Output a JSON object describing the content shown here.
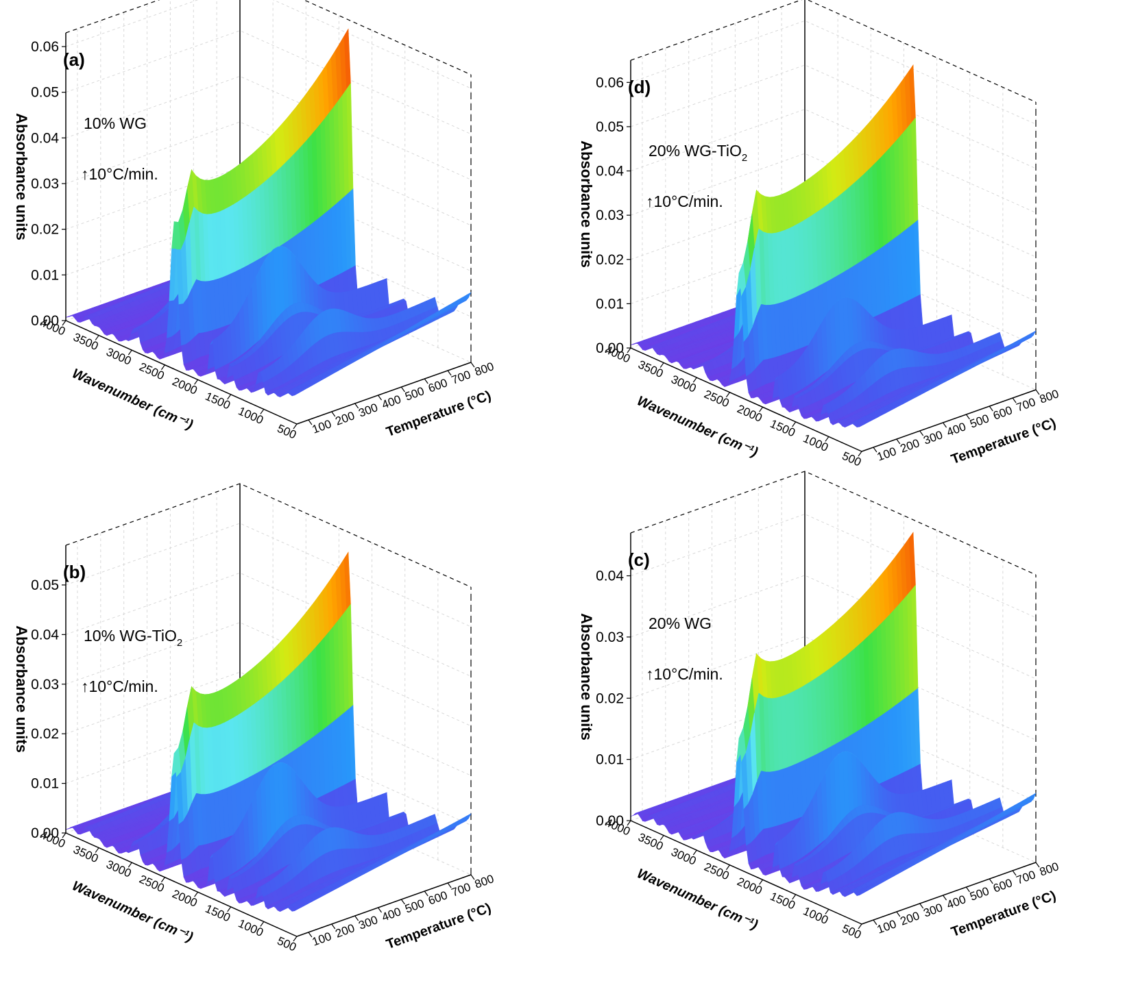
{
  "figure": {
    "panels": [
      {
        "label": "(a)",
        "sample": "10% WG",
        "subscript": "",
        "rate": "↑10°C/min."
      },
      {
        "label": "(d)",
        "sample": "20% WG-TiO",
        "subscript": "2",
        "rate": "↑10°C/min."
      },
      {
        "label": "(b)",
        "sample": "10% WG-TiO",
        "subscript": "2",
        "rate": "↑10°C/min."
      },
      {
        "label": "(c)",
        "sample": "20% WG",
        "subscript": "",
        "rate": "↑10°C/min."
      }
    ]
  },
  "chart_data": [
    {
      "type": "surface3d",
      "panel": "(a)",
      "zlabel": "Absorbance units",
      "xlabel": "Wavenumber (cm⁻¹)",
      "ylabel": "Temperature (°C)",
      "z_ticks": [
        "0.00",
        "0.01",
        "0.02",
        "0.03",
        "0.04",
        "0.05",
        "0.06"
      ],
      "x_ticks": [
        "4000",
        "3500",
        "3000",
        "2500",
        "2000",
        "1500",
        "1000",
        "500"
      ],
      "y_ticks": [
        "100",
        "200",
        "300",
        "400",
        "500",
        "600",
        "700",
        "800"
      ],
      "xlim": [
        4000,
        500
      ],
      "ylim": [
        50,
        800
      ],
      "zlim": [
        0,
        0.063
      ],
      "peaks": [
        {
          "wavenumber": 3650,
          "z": 0.004
        },
        {
          "wavenumber": 2990,
          "z": 0.019
        },
        {
          "wavenumber": 2920,
          "z": 0.019
        },
        {
          "wavenumber": 2360,
          "z": 0.062
        },
        {
          "wavenumber": 1790,
          "z": 0.027
        },
        {
          "wavenumber": 1510,
          "z": 0.013
        },
        {
          "wavenumber": 1060,
          "z": 0.012
        }
      ],
      "co2_band_at_800C": 0.06,
      "co2_band_valley": 0.036,
      "baseline_rise_500": 0.014
    },
    {
      "type": "surface3d",
      "panel": "(d)",
      "zlabel": "Absorbance units",
      "xlabel": "Wavenumber (cm⁻¹)",
      "ylabel": "Temperature (°C)",
      "z_ticks": [
        "0.00",
        "0.01",
        "0.02",
        "0.03",
        "0.04",
        "0.05",
        "0.06"
      ],
      "x_ticks": [
        "4000",
        "3500",
        "3000",
        "2500",
        "2000",
        "1500",
        "1000",
        "500"
      ],
      "y_ticks": [
        "100",
        "200",
        "300",
        "400",
        "500",
        "600",
        "700",
        "800"
      ],
      "xlim": [
        4000,
        500
      ],
      "ylim": [
        50,
        800
      ],
      "zlim": [
        0,
        0.065
      ],
      "peaks": [
        {
          "wavenumber": 3650,
          "z": 0.002
        },
        {
          "wavenumber": 2990,
          "z": 0.01
        },
        {
          "wavenumber": 2920,
          "z": 0.01
        },
        {
          "wavenumber": 2360,
          "z": 0.061
        },
        {
          "wavenumber": 1790,
          "z": 0.022
        },
        {
          "wavenumber": 1510,
          "z": 0.011
        },
        {
          "wavenumber": 1060,
          "z": 0.01
        }
      ],
      "co2_band_at_800C": 0.06,
      "co2_band_valley": 0.04,
      "baseline_rise_500": 0.012
    },
    {
      "type": "surface3d",
      "panel": "(b)",
      "zlabel": "Absorbance units",
      "xlabel": "Wavenumber (cm⁻¹)",
      "ylabel": "Temperature (°C)",
      "z_ticks": [
        "0.00",
        "0.01",
        "0.02",
        "0.03",
        "0.04",
        "0.05"
      ],
      "x_ticks": [
        "4000",
        "3500",
        "3000",
        "2500",
        "2000",
        "1500",
        "1000",
        "500"
      ],
      "y_ticks": [
        "100",
        "200",
        "300",
        "400",
        "500",
        "600",
        "700",
        "800"
      ],
      "xlim": [
        4000,
        500
      ],
      "ylim": [
        50,
        800
      ],
      "zlim": [
        0,
        0.058
      ],
      "peaks": [
        {
          "wavenumber": 3650,
          "z": 0.004
        },
        {
          "wavenumber": 2990,
          "z": 0.017
        },
        {
          "wavenumber": 2920,
          "z": 0.017
        },
        {
          "wavenumber": 2360,
          "z": 0.053
        },
        {
          "wavenumber": 1790,
          "z": 0.024
        },
        {
          "wavenumber": 1510,
          "z": 0.012
        },
        {
          "wavenumber": 1060,
          "z": 0.01
        }
      ],
      "co2_band_at_800C": 0.053,
      "co2_band_valley": 0.033,
      "baseline_rise_500": 0.011
    },
    {
      "type": "surface3d",
      "panel": "(c)",
      "zlabel": "Absorbance units",
      "xlabel": "Wavenumber (cm⁻¹)",
      "ylabel": "Temperature (°C)",
      "z_ticks": [
        "0.00",
        "0.01",
        "0.02",
        "0.03",
        "0.04"
      ],
      "x_ticks": [
        "4000",
        "3500",
        "3000",
        "2500",
        "2000",
        "1500",
        "1000",
        "500"
      ],
      "y_ticks": [
        "100",
        "200",
        "300",
        "400",
        "500",
        "600",
        "700",
        "800"
      ],
      "xlim": [
        4000,
        500
      ],
      "ylim": [
        50,
        800
      ],
      "zlim": [
        0,
        0.047
      ],
      "peaks": [
        {
          "wavenumber": 3650,
          "z": 0.002
        },
        {
          "wavenumber": 2990,
          "z": 0.009
        },
        {
          "wavenumber": 2920,
          "z": 0.009
        },
        {
          "wavenumber": 2360,
          "z": 0.046
        },
        {
          "wavenumber": 1790,
          "z": 0.019
        },
        {
          "wavenumber": 1510,
          "z": 0.009
        },
        {
          "wavenumber": 1060,
          "z": 0.008
        }
      ],
      "co2_band_at_800C": 0.044,
      "co2_band_valley": 0.03,
      "baseline_rise_500": 0.01
    }
  ]
}
